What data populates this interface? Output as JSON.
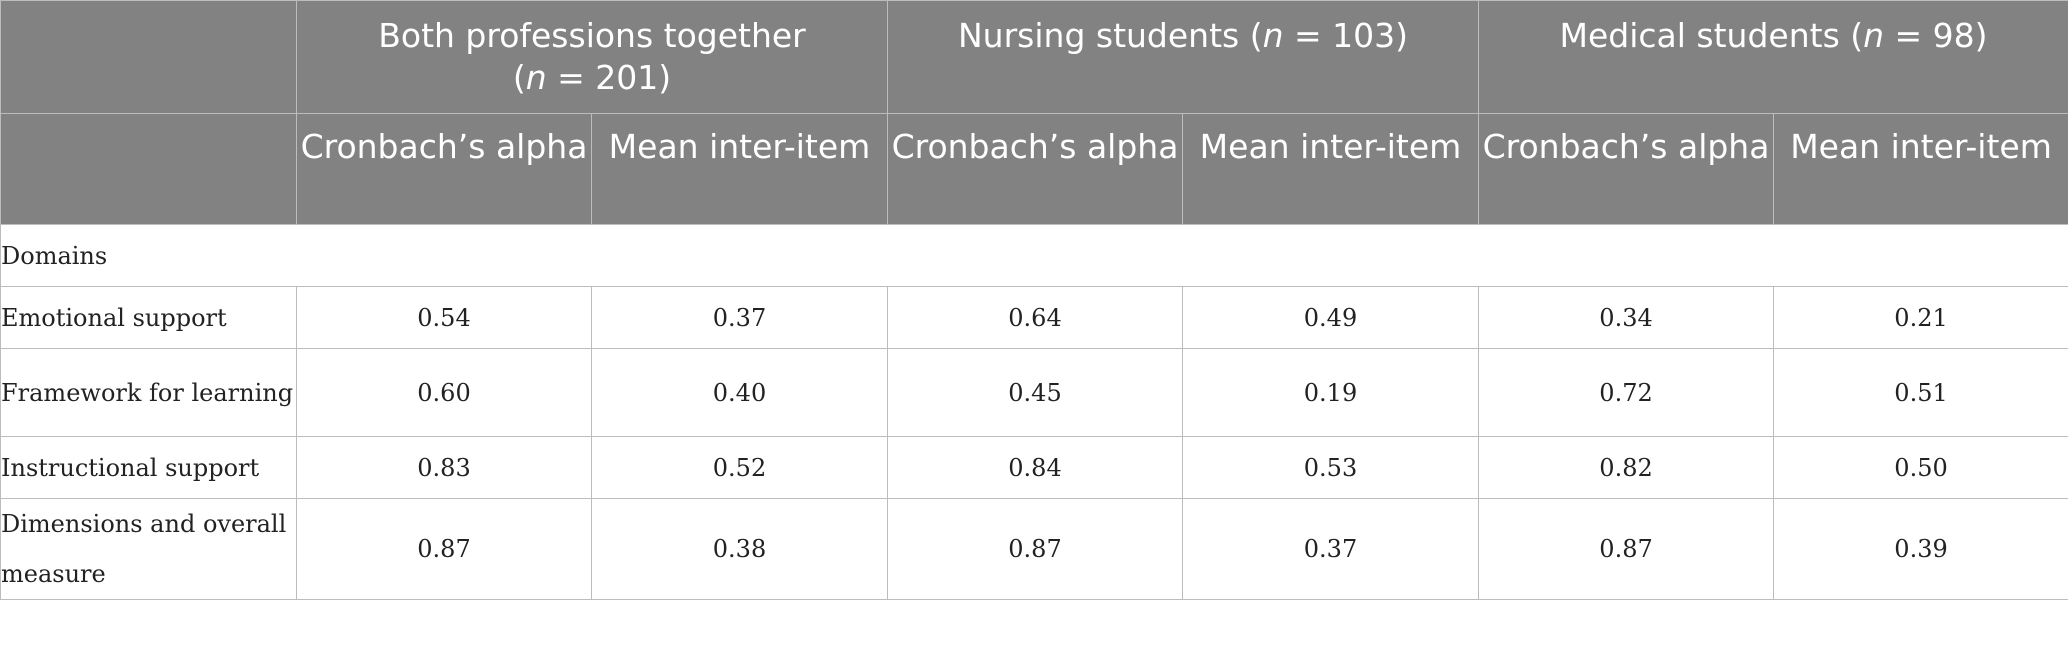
{
  "header": {
    "groups": [
      {
        "label": "Both professions together",
        "n_prefix": "(",
        "n_var": "n",
        "n_eq": " = 201)",
        "layout": "two-line"
      },
      {
        "label": "Nursing students (",
        "n_var": "n",
        "n_eq": " = 103)",
        "layout": "one-line"
      },
      {
        "label": "Medical students (",
        "n_var": "n",
        "n_eq": " = 98)",
        "layout": "one-line"
      }
    ],
    "subheaders": [
      "Cronbach’s alpha",
      "Mean inter-item",
      "Cronbach’s alpha",
      "Mean inter-item",
      "Cronbach’s alpha",
      "Mean inter-item"
    ]
  },
  "section_label": "Domains",
  "rows": [
    {
      "label": "Emotional support",
      "values": [
        "0.54",
        "0.37",
        "0.64",
        "0.49",
        "0.34",
        "0.21"
      ]
    },
    {
      "label": "Framework for learning",
      "values": [
        "0.60",
        "0.40",
        "0.45",
        "0.19",
        "0.72",
        "0.51"
      ]
    },
    {
      "label": "Instructional support",
      "values": [
        "0.83",
        "0.52",
        "0.84",
        "0.53",
        "0.82",
        "0.50"
      ]
    },
    {
      "label": "Dimensions and overall measure",
      "values": [
        "0.87",
        "0.38",
        "0.87",
        "0.37",
        "0.87",
        "0.39"
      ]
    }
  ]
}
